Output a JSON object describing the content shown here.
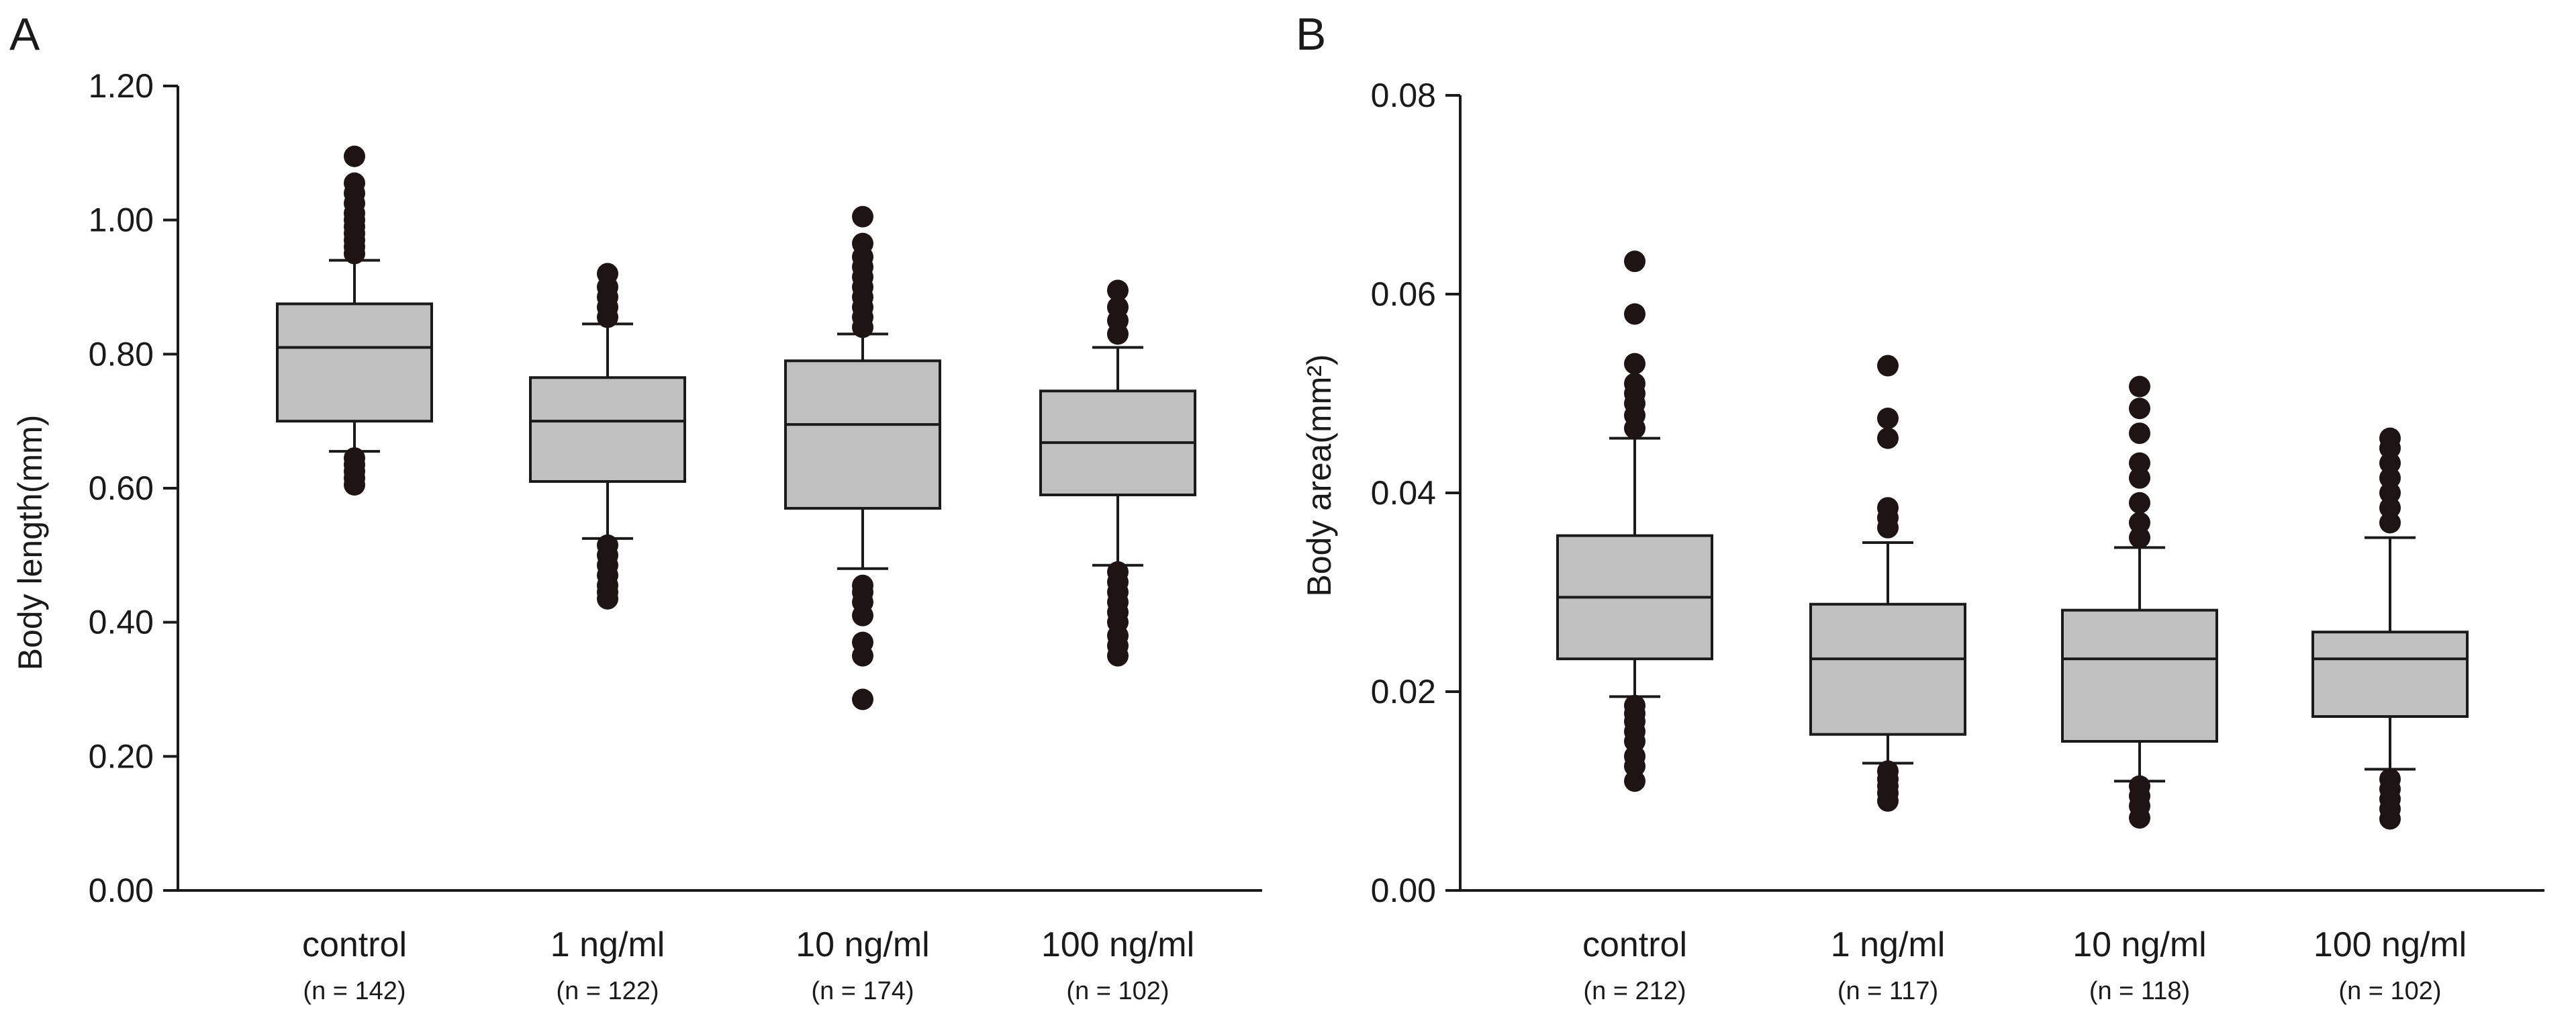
{
  "chart_data": [
    {
      "type": "box",
      "panel_label": "A",
      "ylabel": "Body length(mm)",
      "ylim": [
        0,
        1.2
      ],
      "y_ticks": [
        "0.00",
        "0.20",
        "0.40",
        "0.60",
        "0.80",
        "1.00",
        "1.20"
      ],
      "groups": [
        {
          "label": "control",
          "n_label": "(n = 142)",
          "q1": 0.7,
          "median": 0.81,
          "q3": 0.875,
          "whisker_low": 0.655,
          "whisker_high": 0.94,
          "outliers": [
            0.605,
            0.615,
            0.625,
            0.635,
            0.645,
            0.95,
            0.96,
            0.97,
            0.98,
            0.99,
            1.0,
            1.01,
            1.025,
            1.04,
            1.055,
            1.095
          ]
        },
        {
          "label": "1 ng/ml",
          "n_label": "(n = 122)",
          "q1": 0.61,
          "median": 0.7,
          "q3": 0.765,
          "whisker_low": 0.525,
          "whisker_high": 0.845,
          "outliers": [
            0.435,
            0.445,
            0.455,
            0.47,
            0.485,
            0.5,
            0.515,
            0.855,
            0.87,
            0.885,
            0.9,
            0.92
          ]
        },
        {
          "label": "10 ng/ml",
          "n_label": "(n = 174)",
          "q1": 0.57,
          "median": 0.695,
          "q3": 0.79,
          "whisker_low": 0.48,
          "whisker_high": 0.83,
          "outliers": [
            0.285,
            0.35,
            0.37,
            0.41,
            0.43,
            0.445,
            0.455,
            0.84,
            0.855,
            0.87,
            0.885,
            0.9,
            0.915,
            0.93,
            0.945,
            0.965,
            1.005
          ]
        },
        {
          "label": "100 ng/ml",
          "n_label": "(n = 102)",
          "q1": 0.59,
          "median": 0.668,
          "q3": 0.745,
          "whisker_low": 0.485,
          "whisker_high": 0.81,
          "outliers": [
            0.35,
            0.365,
            0.38,
            0.4,
            0.415,
            0.43,
            0.445,
            0.46,
            0.475,
            0.83,
            0.85,
            0.87,
            0.895
          ]
        }
      ]
    },
    {
      "type": "box",
      "panel_label": "B",
      "ylabel": "Body area(mm²)",
      "ylim": [
        0,
        0.08
      ],
      "y_ticks": [
        "0.00",
        "0.02",
        "0.04",
        "0.06",
        "0.08"
      ],
      "groups": [
        {
          "label": "control",
          "n_label": "(n = 212)",
          "q1": 0.0233,
          "median": 0.0295,
          "q3": 0.0357,
          "whisker_low": 0.0195,
          "whisker_high": 0.0455,
          "outliers": [
            0.011,
            0.0125,
            0.0135,
            0.015,
            0.016,
            0.017,
            0.0178,
            0.0186,
            0.0465,
            0.0478,
            0.049,
            0.05,
            0.051,
            0.053,
            0.058,
            0.0633
          ]
        },
        {
          "label": "1 ng/ml",
          "n_label": "(n = 117)",
          "q1": 0.0157,
          "median": 0.0233,
          "q3": 0.0288,
          "whisker_low": 0.0128,
          "whisker_high": 0.035,
          "outliers": [
            0.009,
            0.0098,
            0.0105,
            0.0112,
            0.012,
            0.0365,
            0.0375,
            0.0385,
            0.0455,
            0.0475,
            0.0528
          ]
        },
        {
          "label": "10 ng/ml",
          "n_label": "(n = 118)",
          "q1": 0.015,
          "median": 0.0233,
          "q3": 0.0282,
          "whisker_low": 0.011,
          "whisker_high": 0.0345,
          "outliers": [
            0.0073,
            0.0085,
            0.0095,
            0.0105,
            0.0355,
            0.037,
            0.039,
            0.0415,
            0.043,
            0.046,
            0.0485,
            0.0507
          ]
        },
        {
          "label": "100 ng/ml",
          "n_label": "(n = 102)",
          "q1": 0.0175,
          "median": 0.0233,
          "q3": 0.026,
          "whisker_low": 0.0122,
          "whisker_high": 0.0355,
          "outliers": [
            0.0072,
            0.0082,
            0.0092,
            0.0102,
            0.0112,
            0.037,
            0.0385,
            0.04,
            0.0415,
            0.043,
            0.0445,
            0.0455
          ]
        }
      ]
    }
  ]
}
